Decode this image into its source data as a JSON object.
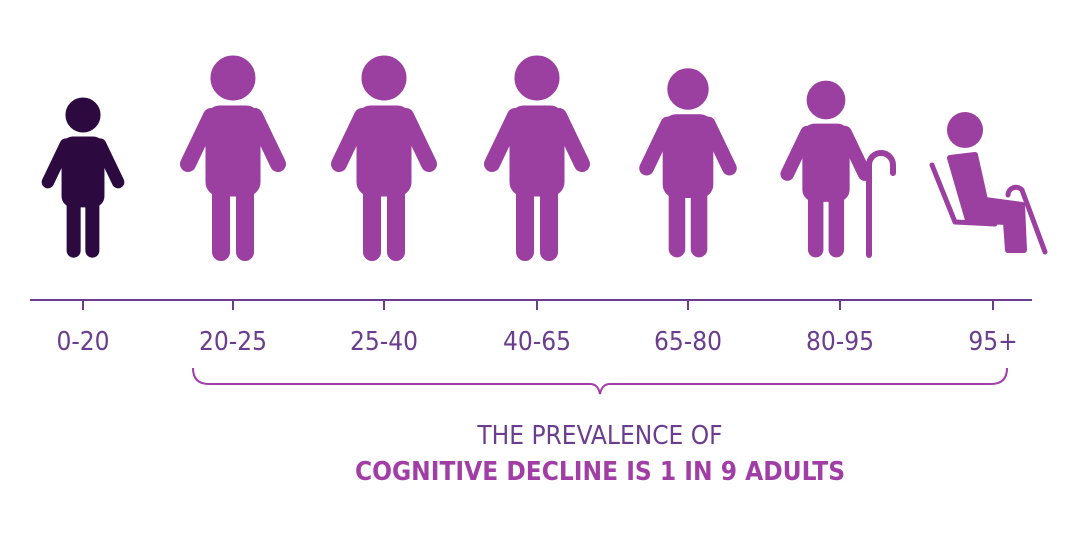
{
  "age_groups": [
    "0-20",
    "20-25",
    "25-40",
    "40-65",
    "65-80",
    "80-95",
    "95+"
  ],
  "caption": {
    "line1": "THE PREVALENCE OF",
    "line2": "COGNITIVE DECLINE IS 1 IN 9 ADULTS"
  }
}
